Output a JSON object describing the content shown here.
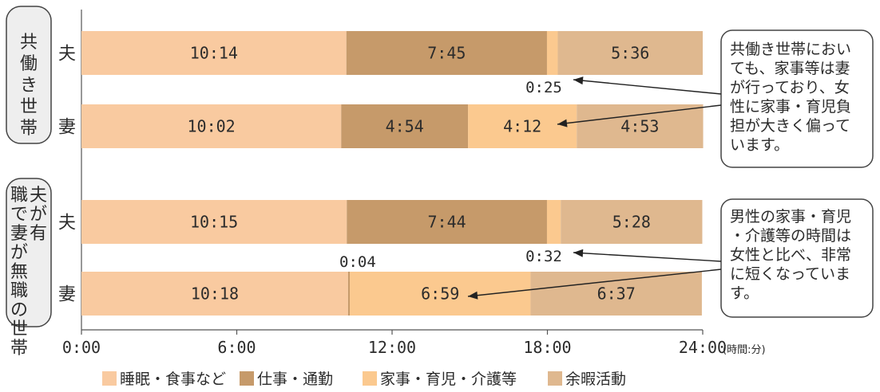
{
  "chart_data": {
    "type": "bar",
    "orientation": "horizontal",
    "stacked": true,
    "x_range": [
      "0:00",
      "24:00"
    ],
    "x_unit": "(時間:分)",
    "x_ticks": [
      "0:00",
      "6:00",
      "12:00",
      "18:00",
      "24:00"
    ],
    "groups": [
      {
        "label": "共働き世帯",
        "rows": [
          {
            "label": "夫",
            "values": [
              "10:14",
              "7:45",
              "0:25",
              "5:36"
            ]
          },
          {
            "label": "妻",
            "values": [
              "10:02",
              "4:54",
              "4:12",
              "4:53"
            ]
          }
        ]
      },
      {
        "label": "夫が有職で妻が無職の世帯",
        "rows": [
          {
            "label": "夫",
            "values": [
              "10:15",
              "7:44",
              "0:32",
              "5:28"
            ]
          },
          {
            "label": "妻",
            "values": [
              "10:18",
              "0:04",
              "6:59",
              "6:37"
            ]
          }
        ]
      }
    ],
    "series": [
      {
        "name": "睡眠・食事など",
        "color": "#f9caa0"
      },
      {
        "name": "仕事・通勤",
        "color": "#c69a6a"
      },
      {
        "name": "家事・育児・介護等",
        "color": "#fbc98f"
      },
      {
        "name": "余暇活動",
        "color": "#dfb88f"
      }
    ],
    "annotations": [
      {
        "text": "共働き世帯においても、家事等は妻が行っており、女性に家事・育児負担が大きく偏っています。"
      },
      {
        "text": "男性の家事・育児・介護等の時間は女性と比べ、非常に短くなっています。"
      }
    ],
    "grid": false,
    "legend_position": "bottom"
  }
}
